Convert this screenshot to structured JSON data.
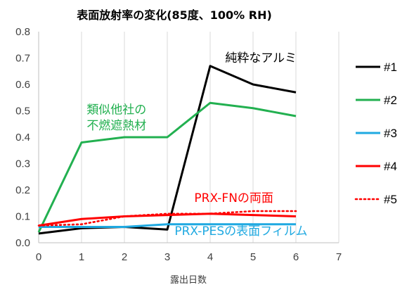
{
  "chart_data": {
    "type": "line",
    "title": "表面放射率の変化(85度、100% RH)",
    "xlabel": "露出日数",
    "ylabel": "",
    "xlim": [
      0,
      7
    ],
    "ylim": [
      0,
      0.8
    ],
    "xticks": [
      "0",
      "1",
      "2",
      "3",
      "4",
      "5",
      "6",
      "7"
    ],
    "yticks": [
      "0.0",
      "0.1",
      "0.2",
      "0.3",
      "0.4",
      "0.5",
      "0.6",
      "0.7",
      "0.8"
    ],
    "grid": "vertical",
    "legend_position": "right",
    "x": [
      0,
      1,
      2,
      3,
      4,
      5,
      6
    ],
    "series": [
      {
        "name": "#1",
        "color": "#000000",
        "dash": "solid",
        "values": [
          0.035,
          0.055,
          0.06,
          0.05,
          0.67,
          0.6,
          0.57
        ]
      },
      {
        "name": "#2",
        "color": "#22b050",
        "dash": "solid",
        "values": [
          0.04,
          0.38,
          0.4,
          0.4,
          0.53,
          0.51,
          0.48
        ]
      },
      {
        "name": "#3",
        "color": "#1fa9e1",
        "dash": "solid",
        "values": [
          0.06,
          0.06,
          0.06,
          0.07,
          0.07,
          0.07,
          0.07
        ]
      },
      {
        "name": "#4",
        "color": "#ff0000",
        "dash": "solid",
        "values": [
          0.065,
          0.09,
          0.1,
          0.105,
          0.11,
          0.105,
          0.1
        ]
      },
      {
        "name": "#5",
        "color": "#ff0000",
        "dash": "dotted",
        "values": [
          0.065,
          0.07,
          0.1,
          0.11,
          0.11,
          0.12,
          0.12
        ]
      }
    ],
    "annotations": [
      {
        "text": "純粋なアルミ",
        "color": "#000000",
        "x": 4.35,
        "y": 0.685
      },
      {
        "text": "類似他社の",
        "color": "#22b050",
        "x": 1.12,
        "y": 0.49
      },
      {
        "text": "不燃遮熱材",
        "color": "#22b050",
        "x": 1.12,
        "y": 0.43
      },
      {
        "text": "PRX-FNの両面",
        "color": "#ff0000",
        "x": 3.63,
        "y": 0.155
      },
      {
        "text": "PRX-PESの表面フィルム",
        "color": "#1fa9e1",
        "x": 3.17,
        "y": 0.03
      }
    ]
  }
}
